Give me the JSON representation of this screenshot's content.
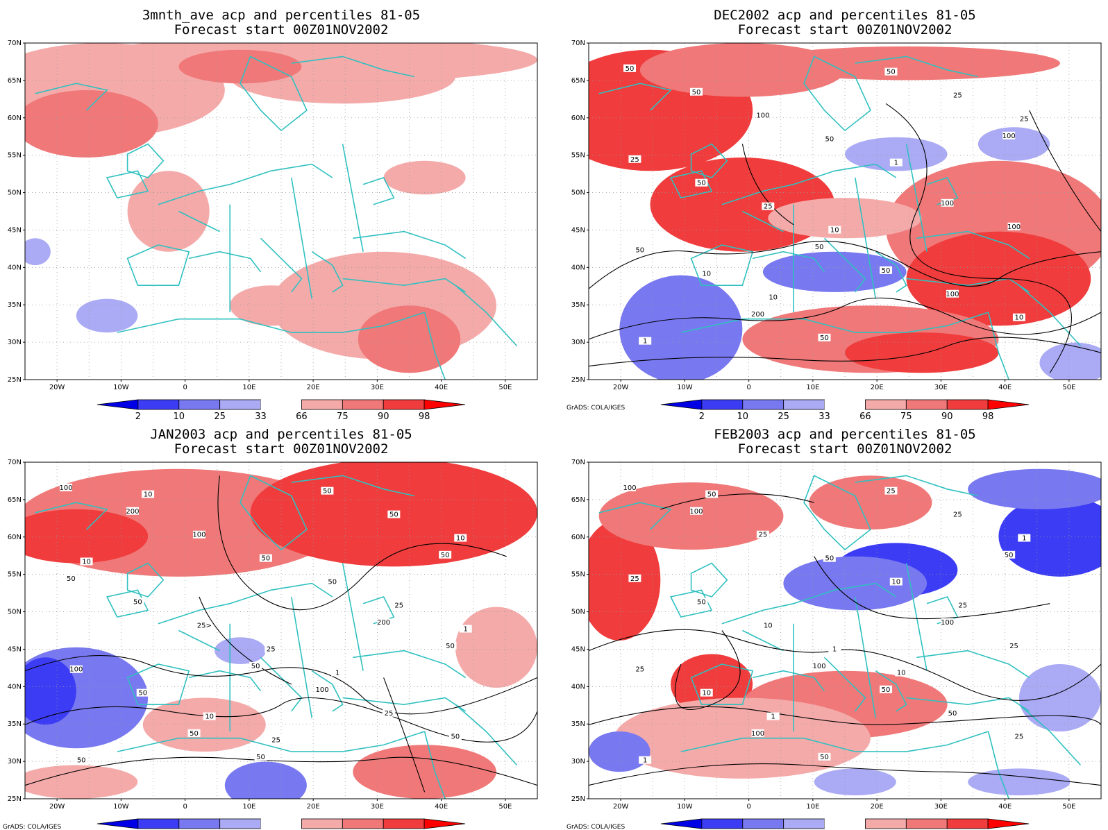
{
  "figure": {
    "credit": "GrADS: COLA/IGES",
    "colorbar_levels": [
      "2",
      "10",
      "25",
      "33",
      "66",
      "75",
      "90",
      "98"
    ],
    "colorbar_colors": {
      "below_2": "#0000e6",
      "2_10": "#3c3cf5",
      "10_25": "#7878f0",
      "25_33": "#aaaaf5",
      "33_66": "#ffffff",
      "66_75": "#f5aaaa",
      "75_90": "#f07878",
      "90_98": "#f03c3c",
      "above_98": "#ff0000"
    },
    "coast_color": "#30c0c0",
    "lat_ticks": [
      "25N",
      "30N",
      "35N",
      "40N",
      "45N",
      "50N",
      "55N",
      "60N",
      "65N",
      "70N"
    ],
    "lon_ticks": [
      "20W",
      "10W",
      "0",
      "10E",
      "20E",
      "30E",
      "40E",
      "50E"
    ]
  },
  "panels": [
    {
      "title_line1": "3mnth_ave acp and percentiles 81-05",
      "title_line2": "Forecast start 00Z01NOV2002",
      "show_credit": false,
      "contour_labels": []
    },
    {
      "title_line1": "DEC2002 acp and percentiles 81-05",
      "title_line2": "Forecast start 00Z01NOV2002",
      "show_credit": true,
      "contour_labels": [
        "50",
        "50",
        "100",
        "200",
        "100",
        "50",
        "50",
        "25",
        "50",
        "100",
        "100",
        "100",
        "50",
        "50",
        "50",
        "50",
        "10",
        "25",
        "25",
        "10",
        "1",
        "1",
        "10",
        "25",
        "10"
      ]
    },
    {
      "title_line1": "JAN2003 acp and percentiles 81-05",
      "title_line2": "Forecast start 00Z01NOV2002",
      "show_credit": true,
      "contour_labels": [
        "100",
        "50",
        "50",
        "50",
        "200",
        "200",
        "100",
        "50",
        "50",
        "50",
        "100",
        "25",
        "50",
        "50",
        "100",
        "50",
        "50",
        "25>",
        "50",
        "50",
        "50",
        "50",
        "25",
        "10",
        "10",
        "25",
        "10",
        "1",
        "10",
        "25",
        "1"
      ]
    },
    {
      "title_line1": "FEB2003 acp and percentiles 81-05",
      "title_line2": "Forecast start 00Z01NOV2002",
      "show_credit": true,
      "contour_labels": [
        "100",
        "100",
        "50",
        "100",
        "100",
        "100",
        "50",
        "25",
        "50",
        "25",
        "25",
        "50",
        "50",
        "25",
        "25",
        "50",
        "25",
        "10",
        "25",
        "10",
        "10",
        "1",
        "1",
        "1",
        "1",
        "25",
        "50",
        "10"
      ]
    }
  ]
}
